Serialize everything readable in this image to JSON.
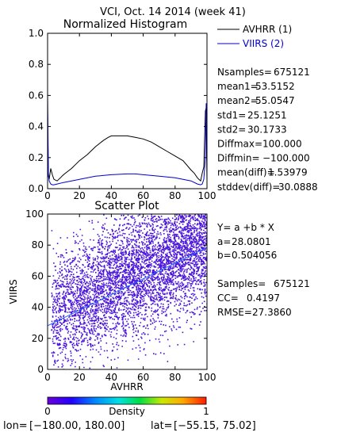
{
  "figure_title": "VCI,  Oct. 14 2014 (week 41)",
  "colors": {
    "avhrr": "#000000",
    "viirs": "#0000cc",
    "scatter_fill": "#4a14dc",
    "fit_line": "#1f66ff"
  },
  "chart_data": [
    {
      "type": "line",
      "title": "Normalized Histogram",
      "xlim": [
        0,
        100
      ],
      "ylim": [
        0,
        1.0
      ],
      "xticks": [
        "0",
        "20",
        "40",
        "60",
        "80",
        "100"
      ],
      "yticks": [
        "0.0",
        "0.2",
        "0.4",
        "0.6",
        "0.8",
        "1.0"
      ],
      "legend_position": "outside-right-top",
      "series": [
        {
          "name": "AVHRR (1)",
          "x": [
            0,
            0.5,
            1,
            2,
            3,
            4,
            6,
            8,
            10,
            15,
            20,
            25,
            30,
            35,
            38,
            40,
            45,
            50,
            55,
            60,
            65,
            70,
            75,
            80,
            85,
            90,
            92,
            94,
            95,
            96,
            97,
            98,
            99,
            99.5,
            100
          ],
          "values": [
            0.5,
            0.08,
            0.06,
            0.13,
            0.09,
            0.06,
            0.05,
            0.07,
            0.09,
            0.13,
            0.18,
            0.22,
            0.27,
            0.31,
            0.33,
            0.34,
            0.34,
            0.34,
            0.33,
            0.32,
            0.3,
            0.27,
            0.24,
            0.21,
            0.18,
            0.12,
            0.1,
            0.07,
            0.06,
            0.05,
            0.1,
            0.14,
            0.5,
            0.52,
            0.08
          ]
        },
        {
          "name": "VIIRS (2)",
          "x": [
            0,
            0.5,
            1,
            2,
            3,
            4,
            6,
            10,
            15,
            20,
            25,
            30,
            40,
            50,
            55,
            60,
            70,
            80,
            90,
            94,
            96,
            97,
            98,
            99,
            99.5,
            100
          ],
          "values": [
            0.63,
            0.1,
            0.05,
            0.03,
            0.025,
            0.025,
            0.03,
            0.04,
            0.05,
            0.06,
            0.07,
            0.08,
            0.09,
            0.095,
            0.095,
            0.09,
            0.08,
            0.07,
            0.05,
            0.03,
            0.025,
            0.03,
            0.06,
            0.2,
            0.55,
            0.05
          ]
        }
      ]
    },
    {
      "type": "scatter",
      "title": "Scatter Plot",
      "xlabel": "AVHRR",
      "ylabel": "VIIRS",
      "xlim": [
        0,
        100
      ],
      "ylim": [
        0,
        100
      ],
      "xticks": [
        "0",
        "20",
        "40",
        "60",
        "80",
        "100"
      ],
      "yticks": [
        "0",
        "20",
        "40",
        "60",
        "80",
        "100"
      ],
      "fit": {
        "a": 28.0801,
        "b": 0.504056
      },
      "colorbar": {
        "label": "Density",
        "min_label": "0",
        "max_label": "1"
      }
    }
  ],
  "stats": [
    {
      "label": "Nsamples=",
      "value": "675121"
    },
    {
      "label": "mean1=",
      "value": "53.5152"
    },
    {
      "label": "mean2=",
      "value": "55.0547"
    },
    {
      "label": "std1=",
      "value": "25.1251"
    },
    {
      "label": "std2=",
      "value": "30.1733"
    },
    {
      "label": "Diffmax=",
      "value": "100.000"
    },
    {
      "label": "Diffmin=",
      "value": "−100.000"
    },
    {
      "label": "mean(diff)=",
      "value": "1.53979"
    },
    {
      "label": "stddev(diff)=",
      "value": "30.0888"
    }
  ],
  "regression": {
    "equation": "Y= a +b * X",
    "a_label": "a=",
    "a_value": "28.0801",
    "b_label": "b=",
    "b_value": "0.504056",
    "samples_label": "Samples=",
    "samples_value": "675121",
    "cc_label": "CC=",
    "cc_value": "0.4197",
    "rmse_label": "RMSE=",
    "rmse_value": "27.3860"
  },
  "footer": {
    "lon_label": "lon=",
    "lon_value": "[−180.00, 180.00]",
    "lat_label": "lat=",
    "lat_value": "[−55.15, 75.02]"
  }
}
